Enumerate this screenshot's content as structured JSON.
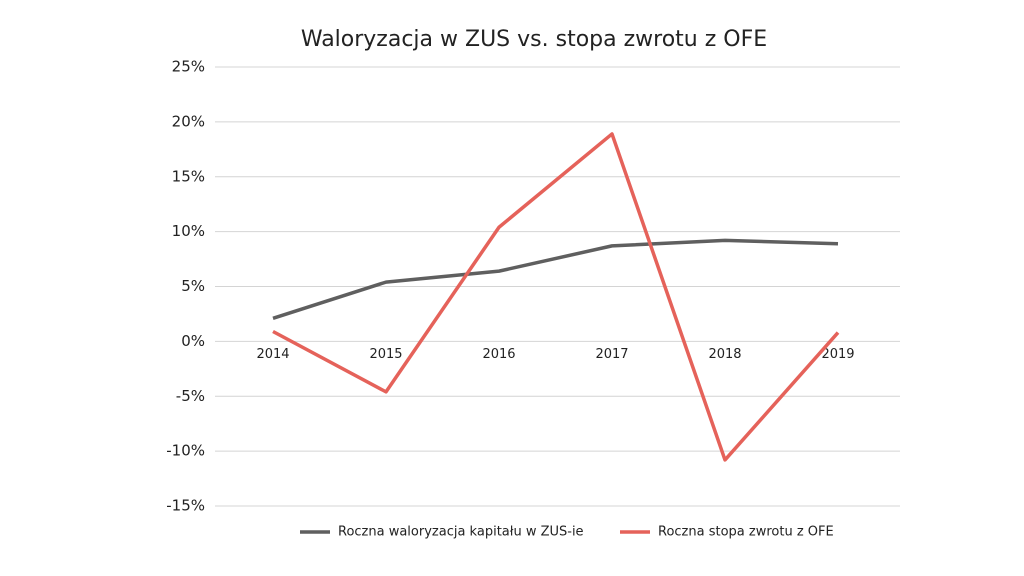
{
  "chart_data": {
    "type": "line",
    "title": "Waloryzacja w ZUS vs. stopa zwrotu z OFE",
    "categories": [
      "2014",
      "2015",
      "2016",
      "2017",
      "2018",
      "2019"
    ],
    "series": [
      {
        "name": "Roczna waloryzacja kapitału w ZUS-ie",
        "color": "#5f5f5f",
        "values": [
          2.1,
          5.4,
          6.4,
          8.7,
          9.2,
          8.9
        ]
      },
      {
        "name": "Roczna stopa zwrotu z OFE",
        "color": "#e5625a",
        "values": [
          0.9,
          -4.6,
          10.4,
          18.9,
          -10.8,
          0.8
        ]
      }
    ],
    "ylim": [
      -15,
      25
    ],
    "yticks": [
      {
        "value": -15,
        "label": "-15%"
      },
      {
        "value": -10,
        "label": "-10%"
      },
      {
        "value": -5,
        "label": "-5%"
      },
      {
        "value": 0,
        "label": "0%"
      },
      {
        "value": 5,
        "label": "5%"
      },
      {
        "value": 10,
        "label": "10%"
      },
      {
        "value": 15,
        "label": "15%"
      },
      {
        "value": 20,
        "label": "20%"
      },
      {
        "value": 25,
        "label": "25%"
      }
    ],
    "grid": true,
    "legend": "bottom"
  }
}
